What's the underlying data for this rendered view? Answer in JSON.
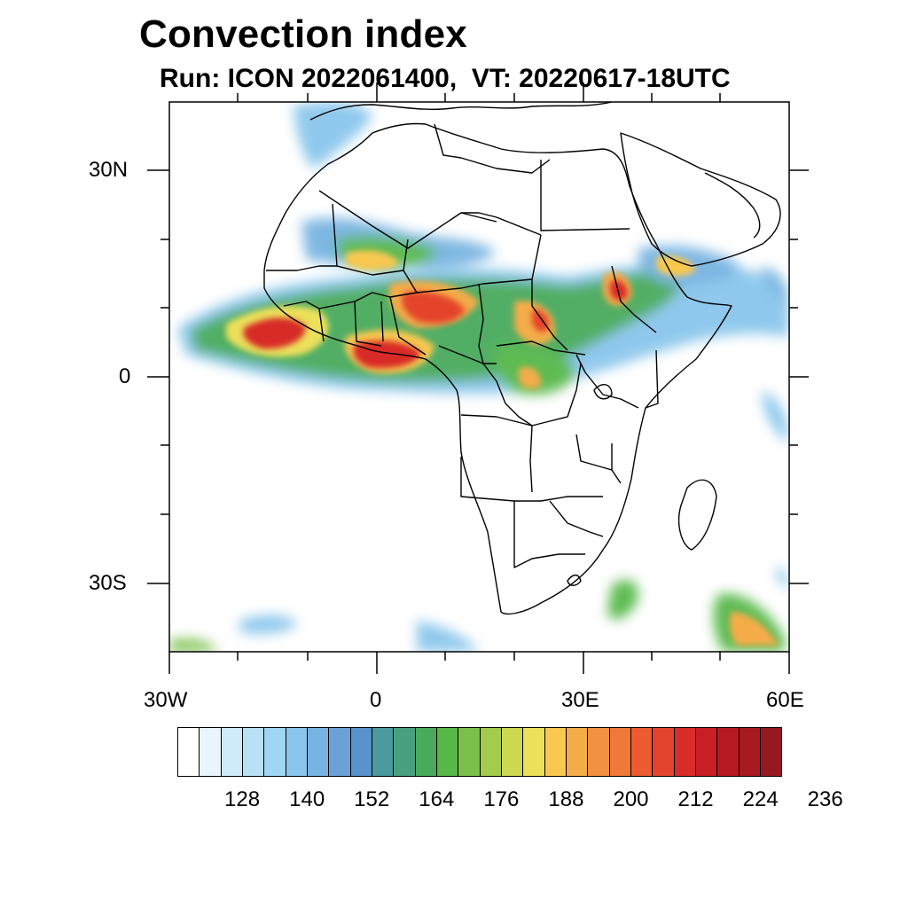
{
  "title": "Convection index",
  "subtitle": "Run: ICON 2022061400,  VT: 20220617-18UTC",
  "axes": {
    "lon_labels": [
      "30W",
      "0",
      "30E",
      "60E"
    ],
    "lat_labels": [
      "30N",
      "0",
      "30S"
    ]
  },
  "colorbar": {
    "colors": [
      "#ffffff",
      "#e8f5fc",
      "#cfeaf8",
      "#b8e0f6",
      "#a1d6f2",
      "#8ac6ec",
      "#78b4e2",
      "#6aa2d8",
      "#5a92ce",
      "#4a9a9e",
      "#48a07e",
      "#4aaa5c",
      "#56b848",
      "#7cc04c",
      "#a4cc4c",
      "#cad852",
      "#ece05a",
      "#f8c850",
      "#f4ac48",
      "#f29240",
      "#f07838",
      "#ec5c30",
      "#e4442c",
      "#d82c28",
      "#c81e26",
      "#b81a24",
      "#a81a22",
      "#961820"
    ],
    "labels": [
      "128",
      "140",
      "152",
      "164",
      "176",
      "188",
      "200",
      "212",
      "224",
      "236"
    ]
  }
}
